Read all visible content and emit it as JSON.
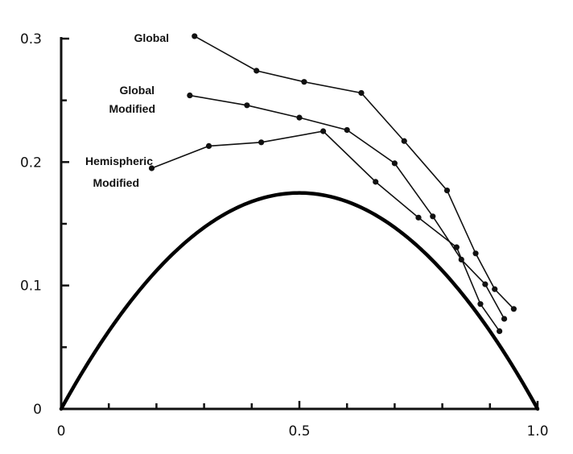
{
  "chart_data": {
    "type": "line",
    "title": "",
    "xlabel": "",
    "ylabel": "",
    "xlim": [
      0,
      1.0
    ],
    "ylim": [
      0,
      0.3
    ],
    "grid": false,
    "legend": "inline labels",
    "x_ticks": [
      {
        "value": 0,
        "label": "0"
      },
      {
        "value": 0.5,
        "label": "0.5"
      },
      {
        "value": 1.0,
        "label": "1.0"
      }
    ],
    "y_ticks": [
      {
        "value": 0,
        "label": "0"
      },
      {
        "value": 0.1,
        "label": "0.1"
      },
      {
        "value": 0.2,
        "label": "0.2"
      },
      {
        "value": 0.3,
        "label": "0.3"
      }
    ],
    "series": [
      {
        "name": "Global",
        "label_lines": [
          "Global"
        ],
        "color": "#111111",
        "x": [
          0.28,
          0.41,
          0.51,
          0.63,
          0.72,
          0.81,
          0.87,
          0.91,
          0.95
        ],
        "y": [
          0.302,
          0.274,
          0.265,
          0.256,
          0.217,
          0.177,
          0.126,
          0.097,
          0.081
        ]
      },
      {
        "name": "Global Modified",
        "label_lines": [
          "Global",
          "Modified"
        ],
        "color": "#111111",
        "x": [
          0.27,
          0.39,
          0.5,
          0.6,
          0.7,
          0.78,
          0.84,
          0.89,
          0.93
        ],
        "y": [
          0.254,
          0.246,
          0.236,
          0.226,
          0.199,
          0.156,
          0.121,
          0.101,
          0.073
        ]
      },
      {
        "name": "Hemispheric Modified",
        "label_lines": [
          "Hemispheric",
          "Modified"
        ],
        "color": "#111111",
        "x": [
          0.19,
          0.31,
          0.42,
          0.55,
          0.66,
          0.75,
          0.83,
          0.88,
          0.92
        ],
        "y": [
          0.195,
          0.213,
          0.216,
          0.225,
          0.184,
          0.155,
          0.131,
          0.085,
          0.063
        ]
      },
      {
        "name": "",
        "label_lines": [],
        "style": "thick-curve",
        "color": "#000000",
        "formula": "y = 0.70 * x * (1 - x)"
      }
    ]
  }
}
